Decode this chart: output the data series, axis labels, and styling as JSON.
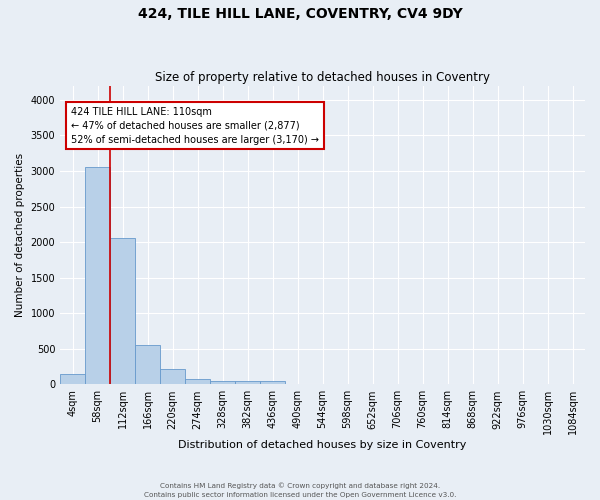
{
  "title1": "424, TILE HILL LANE, COVENTRY, CV4 9DY",
  "title2": "Size of property relative to detached houses in Coventry",
  "xlabel": "Distribution of detached houses by size in Coventry",
  "ylabel": "Number of detached properties",
  "bin_labels": [
    "4sqm",
    "58sqm",
    "112sqm",
    "166sqm",
    "220sqm",
    "274sqm",
    "328sqm",
    "382sqm",
    "436sqm",
    "490sqm",
    "544sqm",
    "598sqm",
    "652sqm",
    "706sqm",
    "760sqm",
    "814sqm",
    "868sqm",
    "922sqm",
    "976sqm",
    "1030sqm",
    "1084sqm"
  ],
  "bar_heights": [
    140,
    3060,
    2060,
    560,
    210,
    70,
    50,
    40,
    40,
    0,
    0,
    0,
    0,
    0,
    0,
    0,
    0,
    0,
    0,
    0,
    0
  ],
  "bar_color": "#b8d0e8",
  "bar_edge_color": "#6699cc",
  "annotation_text": "424 TILE HILL LANE: 110sqm\n← 47% of detached houses are smaller (2,877)\n52% of semi-detached houses are larger (3,170) →",
  "annotation_box_color": "#ffffff",
  "annotation_box_edge": "#cc0000",
  "vertical_line_color": "#cc0000",
  "footer1": "Contains HM Land Registry data © Crown copyright and database right 2024.",
  "footer2": "Contains public sector information licensed under the Open Government Licence v3.0.",
  "ylim": [
    0,
    4200
  ],
  "yticks": [
    0,
    500,
    1000,
    1500,
    2000,
    2500,
    3000,
    3500,
    4000
  ],
  "bg_color": "#e8eef5",
  "plot_bg_color": "#e8eef5",
  "grid_color": "#ffffff"
}
